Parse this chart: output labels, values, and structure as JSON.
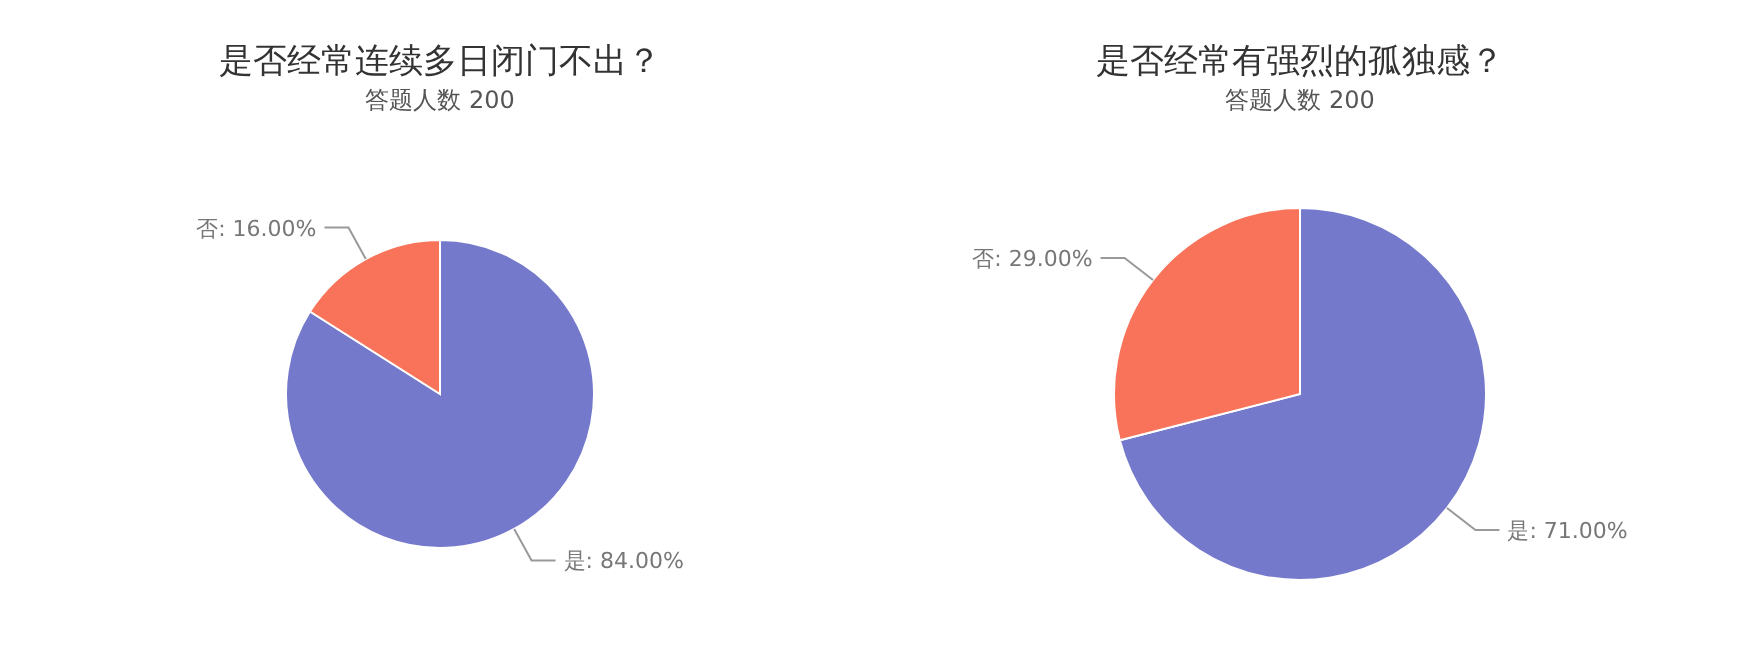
{
  "chart_data": [
    {
      "type": "pie",
      "title": "是否经常连续多日闭门不出？",
      "subtitle": "答题人数 200",
      "categories": [
        "是",
        "否"
      ],
      "values": [
        84,
        16
      ],
      "value_labels": [
        ": 84.00%",
        ": 16.00%"
      ],
      "colors": [
        "#7479cb",
        "#f8735a"
      ],
      "legend": false
    },
    {
      "type": "pie",
      "title": "是否经常有强烈的孤独感？",
      "subtitle": "答题人数 200",
      "categories": [
        "是",
        "否"
      ],
      "values": [
        71,
        29
      ],
      "value_labels": [
        ": 71.00%",
        ": 29.00%"
      ],
      "colors": [
        "#7479cb",
        "#f8735a"
      ],
      "legend": false
    }
  ]
}
